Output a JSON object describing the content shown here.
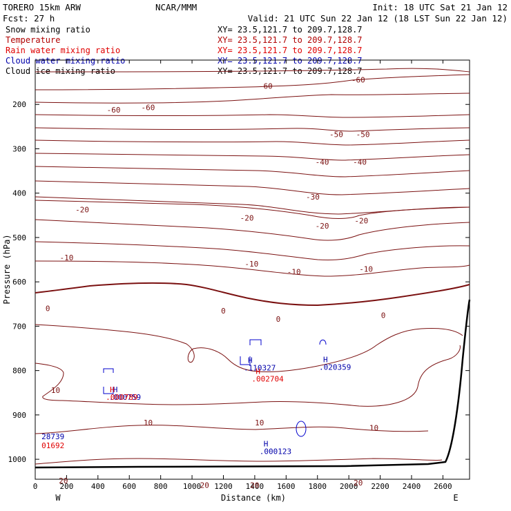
{
  "header": {
    "model": "TORERO  15km ARW",
    "org": "NCAR/MMM",
    "init": "Init: 18 UTC Sat 21 Jan 12",
    "fcst": "Fcst:   27 h",
    "valid": "Valid: 21 UTC Sun 22 Jan 12 (18 LST Sun 22 Jan 12)"
  },
  "fields": [
    {
      "label": "Snow mixing ratio",
      "xy": "XY=  23.5,121.7 to 209.7,128.7",
      "color": "#000000",
      "xy_color": "#000000"
    },
    {
      "label": "Temperature",
      "xy": "XY=  23.5,121.7 to 209.7,128.7",
      "color": "#b00000",
      "xy_color": "#b00000"
    },
    {
      "label": "Rain water mixing ratio",
      "xy": "XY=  23.5,121.7 to 209.7,128.7",
      "color": "#e00000",
      "xy_color": "#e00000"
    },
    {
      "label": "Cloud water mixing ratio",
      "xy": "XY=  23.5,121.7 to 209.7,128.7",
      "color": "#0000aa",
      "xy_color": "#0000aa"
    },
    {
      "label": "Cloud ice mixing ratio",
      "xy": "XY=  23.5,121.7 to 209.7,128.7",
      "color": "#000000",
      "xy_color": "#000000"
    }
  ],
  "chart_data": {
    "type": "contour",
    "xlabel": "Distance (km)",
    "ylabel": "Pressure (hPa)",
    "xlim": [
      0,
      2770
    ],
    "ylim": [
      100,
      1045
    ],
    "x_ticks": [
      0,
      200,
      400,
      600,
      800,
      1000,
      1200,
      1400,
      1600,
      1800,
      2000,
      2200,
      2400,
      2600
    ],
    "y_ticks": [
      200,
      300,
      400,
      500,
      600,
      700,
      800,
      900,
      1000
    ],
    "left_end_label": "W",
    "right_end_label": "E",
    "temperature_contour_interval_c": 5,
    "temperature_contour_labels": [
      {
        "text": "-60",
        "x": 1470,
        "p": 158
      },
      {
        "text": "-60",
        "x": 2060,
        "p": 144
      },
      {
        "text": "-60",
        "x": 500,
        "p": 212
      },
      {
        "text": "-60",
        "x": 720,
        "p": 207
      },
      {
        "text": "-50",
        "x": 1920,
        "p": 267
      },
      {
        "text": "-50",
        "x": 2090,
        "p": 267
      },
      {
        "text": "-40",
        "x": 1830,
        "p": 330
      },
      {
        "text": "-40",
        "x": 2070,
        "p": 330
      },
      {
        "text": "-30",
        "x": 1770,
        "p": 408
      },
      {
        "text": "-20",
        "x": 300,
        "p": 437
      },
      {
        "text": "-20",
        "x": 1350,
        "p": 456
      },
      {
        "text": "-20",
        "x": 1830,
        "p": 474
      },
      {
        "text": "-20",
        "x": 2080,
        "p": 462
      },
      {
        "text": "-10",
        "x": 200,
        "p": 545
      },
      {
        "text": "-10",
        "x": 1380,
        "p": 559
      },
      {
        "text": "-10",
        "x": 1650,
        "p": 577
      },
      {
        "text": "-10",
        "x": 2110,
        "p": 571
      },
      {
        "text": "0",
        "x": 80,
        "p": 660
      },
      {
        "text": "0",
        "x": 1200,
        "p": 665
      },
      {
        "text": "0",
        "x": 1550,
        "p": 684
      },
      {
        "text": "0",
        "x": 2220,
        "p": 675
      },
      {
        "text": "10",
        "x": 130,
        "p": 844
      },
      {
        "text": "10",
        "x": 720,
        "p": 917
      },
      {
        "text": "10",
        "x": 1430,
        "p": 917
      },
      {
        "text": "10",
        "x": 2160,
        "p": 929
      },
      {
        "text": "20",
        "x": 180,
        "p": 1048
      },
      {
        "text": "20",
        "x": 1080,
        "p": 1058
      },
      {
        "text": "20",
        "x": 1400,
        "p": 1058
      },
      {
        "text": "20",
        "x": 2060,
        "p": 1053
      }
    ],
    "maxima_labels": [
      {
        "h": "H",
        "value": ".110327",
        "color": "#0000aa",
        "x": 1330,
        "p": 800
      },
      {
        "h": "H",
        "value": ".002704",
        "color": "#e00000",
        "x": 1380,
        "p": 825
      },
      {
        "h": "H",
        "value": ".020359",
        "color": "#0000aa",
        "x": 1810,
        "p": 798
      },
      {
        "h": "H",
        "value": ".000123",
        "color": "#0000aa",
        "x": 1430,
        "p": 988
      },
      {
        "h": "H",
        "value": ".000759",
        "color": "#0000aa",
        "x": 470,
        "p": 866
      },
      {
        "h": "H",
        "value": ".000789",
        "color": "#e00000",
        "x": 450,
        "p": 866
      },
      {
        "h": "",
        "value": "28739",
        "color": "#0000aa",
        "x": 40,
        "p": 955
      },
      {
        "h": "",
        "value": "01692",
        "color": "#e00000",
        "x": 40,
        "p": 975
      }
    ]
  }
}
